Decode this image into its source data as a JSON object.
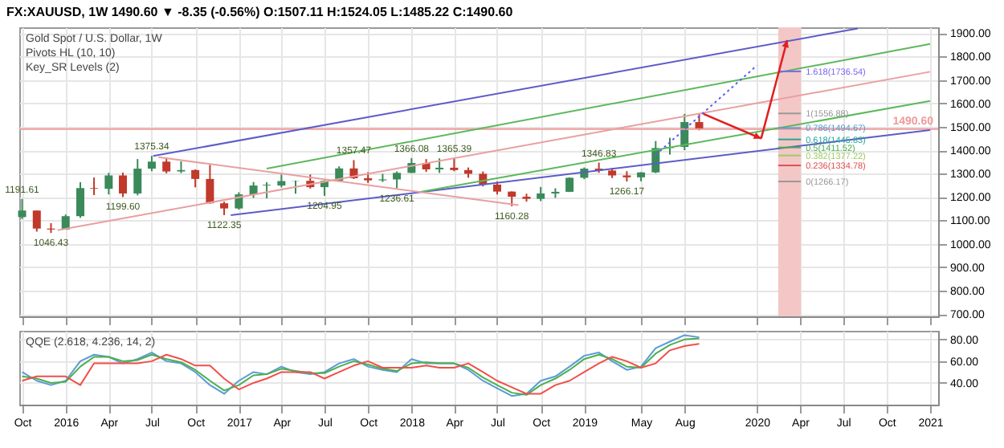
{
  "chart_data": [
    {
      "type": "candlestick",
      "title": "FX:XAUUSD, 1W  1490.60 ▼ -8.35 (-0.56%)  O:1507.11 H:1524.05 L:1485.22 C:1490.60",
      "subtitle": "Gold Spot / U.S. Dollar, 1W",
      "x": [
        "2015-10",
        "2015-11",
        "2015-12",
        "2016-01",
        "2016-02",
        "2016-03",
        "2016-04",
        "2016-05",
        "2016-06",
        "2016-07",
        "2016-08",
        "2016-09",
        "2016-10",
        "2016-11",
        "2016-12",
        "2017-01",
        "2017-02",
        "2017-03",
        "2017-04",
        "2017-05",
        "2017-06",
        "2017-07",
        "2017-08",
        "2017-09",
        "2017-10",
        "2017-11",
        "2017-12",
        "2018-01",
        "2018-02",
        "2018-03",
        "2018-04",
        "2018-05",
        "2018-06",
        "2018-07",
        "2018-08",
        "2018-09",
        "2018-10",
        "2018-11",
        "2018-12",
        "2019-01",
        "2019-02",
        "2019-03",
        "2019-04",
        "2019-05",
        "2019-06",
        "2019-07",
        "2019-08",
        "2019-09"
      ],
      "ohlc": [
        [
          1114,
          1191.61,
          1106,
          1142
        ],
        [
          1142,
          1142,
          1052,
          1065
        ],
        [
          1065,
          1088,
          1046.43,
          1061
        ],
        [
          1061,
          1125,
          1060,
          1118
        ],
        [
          1118,
          1263,
          1111,
          1238
        ],
        [
          1238,
          1283,
          1208,
          1235
        ],
        [
          1235,
          1303,
          1211,
          1292
        ],
        [
          1292,
          1304,
          1199.6,
          1215
        ],
        [
          1215,
          1362,
          1207,
          1321
        ],
        [
          1321,
          1375.34,
          1310,
          1351
        ],
        [
          1351,
          1367,
          1301,
          1309
        ],
        [
          1309,
          1352,
          1302,
          1315
        ],
        [
          1315,
          1318,
          1241,
          1277
        ],
        [
          1277,
          1337,
          1171,
          1173
        ],
        [
          1173,
          1180,
          1122.35,
          1151
        ],
        [
          1151,
          1220,
          1146,
          1211
        ],
        [
          1211,
          1264,
          1196,
          1249
        ],
        [
          1249,
          1263,
          1194,
          1252
        ],
        [
          1249,
          1296,
          1241,
          1268
        ],
        [
          1268,
          1270,
          1214,
          1269
        ],
        [
          1269,
          1296,
          1236,
          1242
        ],
        [
          1242,
          1272,
          1204.95,
          1269
        ],
        [
          1269,
          1331,
          1267,
          1322
        ],
        [
          1322,
          1357.47,
          1277,
          1280
        ],
        [
          1280,
          1306,
          1260,
          1271
        ],
        [
          1271,
          1299,
          1264,
          1275
        ],
        [
          1275,
          1309,
          1236.61,
          1303
        ],
        [
          1303,
          1366.08,
          1302,
          1345
        ],
        [
          1345,
          1362,
          1307,
          1318
        ],
        [
          1318,
          1365,
          1303,
          1325
        ],
        [
          1325,
          1365.39,
          1310,
          1315
        ],
        [
          1315,
          1326,
          1282,
          1299
        ],
        [
          1299,
          1309,
          1245,
          1253
        ],
        [
          1253,
          1266,
          1211,
          1223
        ],
        [
          1223,
          1224,
          1160.28,
          1201
        ],
        [
          1201,
          1214,
          1180,
          1192
        ],
        [
          1192,
          1243,
          1182,
          1215
        ],
        [
          1215,
          1237,
          1196,
          1222
        ],
        [
          1222,
          1284,
          1221,
          1282
        ],
        [
          1282,
          1326,
          1276,
          1321
        ],
        [
          1321,
          1346.83,
          1303,
          1313
        ],
        [
          1313,
          1324,
          1281,
          1292
        ],
        [
          1292,
          1310,
          1266.17,
          1284
        ],
        [
          1284,
          1306,
          1267,
          1305
        ],
        [
          1305,
          1439,
          1302,
          1409
        ],
        [
          1409,
          1453,
          1381,
          1414
        ],
        [
          1414,
          1555,
          1400,
          1520
        ],
        [
          1520,
          1556.88,
          1485,
          1491
        ]
      ],
      "series": [
        {
          "type": "line",
          "color": "#5c5cc8",
          "x": [
            "2016-07-04",
            "2020-08-01"
          ],
          "values": [
            1375,
            1920
          ]
        },
        {
          "type": "line",
          "color": "#5c5cc8",
          "x": [
            "2016-12-15",
            "2021-01-01"
          ],
          "values": [
            1122,
            1486
          ]
        },
        {
          "type": "line",
          "color": "#5cb85c",
          "x": [
            "2017-03-01",
            "2021-01-01"
          ],
          "values": [
            1321,
            1854
          ]
        },
        {
          "type": "line",
          "color": "#5cb85c",
          "x": [
            "2018-01-20",
            "2021-01-01"
          ],
          "values": [
            1222,
            1610
          ]
        },
        {
          "type": "line",
          "color": "#e8a0a0",
          "x": [
            "2015-12-15",
            "2021-01-01"
          ],
          "values": [
            1058,
            1735
          ]
        },
        {
          "type": "line",
          "color": "#e8a0a0",
          "x": [
            "2016-07-15",
            "2018-08-15"
          ],
          "values": [
            1370,
            1165
          ]
        },
        {
          "type": "line",
          "color": "#5c5cf0",
          "line_style": "dotted",
          "x": [
            "2019-06-01",
            "2020-01-01"
          ],
          "values": [
            1380,
            1762
          ]
        },
        {
          "type": "line",
          "name": "1.618(1736.54)",
          "color": "#7b68ee",
          "x": [
            "2020-02-15",
            "2020-04-03"
          ],
          "values": [
            1736.54,
            1736.54
          ]
        },
        {
          "type": "line",
          "name": "1(1556.88)",
          "color": "#999999",
          "x": [
            "2020-02-15",
            "2020-04-03"
          ],
          "values": [
            1556.88,
            1556.88
          ]
        },
        {
          "type": "line",
          "name": "0.786(1494.67)",
          "color": "#5b9bd5",
          "x": [
            "2020-02-15",
            "2020-04-03"
          ],
          "values": [
            1494.67,
            1494.67
          ]
        },
        {
          "type": "line",
          "name": "0.618(1445.83)",
          "color": "#26a69a",
          "x": [
            "2020-02-15",
            "2020-04-03"
          ],
          "values": [
            1445.83,
            1445.83
          ]
        },
        {
          "type": "line",
          "name": "0.5(1411.52)",
          "color": "#4caf50",
          "x": [
            "2020-02-15",
            "2020-04-03"
          ],
          "values": [
            1411.52,
            1411.52
          ]
        },
        {
          "type": "line",
          "name": "0.382(1377.22)",
          "color": "#9ccc65",
          "x": [
            "2020-02-15",
            "2020-04-03"
          ],
          "values": [
            1377.22,
            1377.22
          ]
        },
        {
          "type": "line",
          "name": "0.236(1334.78)",
          "color": "#e05050",
          "x": [
            "2020-02-15",
            "2020-04-03"
          ],
          "values": [
            1334.78,
            1334.78
          ]
        },
        {
          "type": "line",
          "name": "0(1266.17)",
          "color": "#999999",
          "x": [
            "2020-02-15",
            "2020-04-03"
          ],
          "values": [
            1266.17,
            1266.17
          ]
        }
      ],
      "annotations": [
        "Pivots HL (10, 10)",
        "Key_SR Levels (2)",
        {
          "text": "1191.61",
          "x": "2015-10",
          "y": 1191.61
        },
        {
          "text": "1046.43",
          "x": "2015-12",
          "y": 1046.43
        },
        {
          "text": "1199.60",
          "x": "2016-05",
          "y": 1199.6
        },
        {
          "text": "1375.34",
          "x": "2016-07",
          "y": 1375.34
        },
        {
          "text": "1122.35",
          "x": "2016-12",
          "y": 1122.35
        },
        {
          "text": "1204.95",
          "x": "2017-07",
          "y": 1204.95
        },
        {
          "text": "1357.47",
          "x": "2017-09",
          "y": 1357.47
        },
        {
          "text": "1236.61",
          "x": "2017-12",
          "y": 1236.61
        },
        {
          "text": "1366.08",
          "x": "2018-01",
          "y": 1366.08
        },
        {
          "text": "1365.39",
          "x": "2018-04",
          "y": 1365.39
        },
        {
          "text": "1160.28",
          "x": "2018-08",
          "y": 1160.28
        },
        {
          "text": "1346.83",
          "x": "2019-02",
          "y": 1346.83
        },
        {
          "text": "1266.17",
          "x": "2019-04",
          "y": 1266.17
        }
      ],
      "ref_lines": [
        {
          "axis": "y",
          "value": 1490.6,
          "label": "1490.60",
          "color": "#ef9a9a"
        }
      ],
      "bands": [
        {
          "axis": "x",
          "from": "2020-02-15",
          "to": "2020-04-03",
          "color": "#f4c7c7"
        }
      ],
      "xlim": [
        "2015-09-25",
        "2021-01-18"
      ],
      "xticks": [
        {
          "value": "2015-10-01",
          "label": null
        },
        {
          "value": "2016-01-01",
          "label": null
        },
        {
          "value": "2016-04-01",
          "label": null
        },
        {
          "value": "2016-07-01",
          "label": null
        },
        {
          "value": "2016-10-01",
          "label": null
        },
        {
          "value": "2017-01-01",
          "label": null
        },
        {
          "value": "2017-04-01",
          "label": null
        },
        {
          "value": "2017-07-01",
          "label": null
        },
        {
          "value": "2017-10-01",
          "label": null
        },
        {
          "value": "2018-01-01",
          "label": null
        },
        {
          "value": "2018-04-01",
          "label": null
        },
        {
          "value": "2018-07-01",
          "label": null
        },
        {
          "value": "2018-10-01",
          "label": null
        },
        {
          "value": "2019-01-01",
          "label": null
        },
        {
          "value": "2019-05-01",
          "label": null
        },
        {
          "value": "2019-08-01",
          "label": null
        },
        {
          "value": "2020-01-01",
          "label": null
        },
        {
          "value": "2020-04-01",
          "label": null
        },
        {
          "value": "2020-07-01",
          "label": null
        },
        {
          "value": "2020-10-01",
          "label": null
        },
        {
          "value": "2021-01-01",
          "label": null
        }
      ],
      "ylim": [
        690,
        1925
      ],
      "yticks": [
        {
          "value": 700,
          "label": "700.00"
        },
        {
          "value": 800,
          "label": "800.00"
        },
        {
          "value": 900,
          "label": "900.00"
        },
        {
          "value": 1000,
          "label": "1000.00"
        },
        {
          "value": 1100,
          "label": "1100.00"
        },
        {
          "value": 1200,
          "label": "1200.00"
        },
        {
          "value": 1300,
          "label": "1300.00"
        },
        {
          "value": 1400,
          "label": "1400.00"
        },
        {
          "value": 1500,
          "label": "1500.00"
        },
        {
          "value": 1600,
          "label": "1600.00"
        },
        {
          "value": 1700,
          "label": "1700.00"
        },
        {
          "value": 1800,
          "label": "1800.00"
        },
        {
          "value": 1900,
          "label": "1900.00"
        }
      ],
      "grid": true,
      "tick_labels": "y"
    },
    {
      "type": "line",
      "annotations": [
        "QQE (2.618, 4.236, 14, 2)"
      ],
      "x": [
        "2015-10",
        "2015-11",
        "2015-12",
        "2016-01",
        "2016-02",
        "2016-03",
        "2016-04",
        "2016-05",
        "2016-06",
        "2016-07",
        "2016-08",
        "2016-09",
        "2016-10",
        "2016-11",
        "2016-12",
        "2017-01",
        "2017-02",
        "2017-03",
        "2017-04",
        "2017-05",
        "2017-06",
        "2017-07",
        "2017-08",
        "2017-09",
        "2017-10",
        "2017-11",
        "2017-12",
        "2018-01",
        "2018-02",
        "2018-03",
        "2018-04",
        "2018-05",
        "2018-06",
        "2018-07",
        "2018-08",
        "2018-09",
        "2018-10",
        "2018-11",
        "2018-12",
        "2019-01",
        "2019-02",
        "2019-03",
        "2019-04",
        "2019-05",
        "2019-06",
        "2019-07",
        "2019-08",
        "2019-09"
      ],
      "series": [
        {
          "color": "#5b9bd5",
          "values": [
            50,
            42,
            38,
            42,
            60,
            66,
            64,
            58,
            62,
            68,
            60,
            58,
            50,
            38,
            30,
            42,
            50,
            48,
            55,
            50,
            48,
            50,
            58,
            62,
            55,
            52,
            50,
            62,
            58,
            58,
            58,
            52,
            42,
            35,
            28,
            30,
            42,
            46,
            55,
            65,
            68,
            60,
            52,
            55,
            72,
            78,
            84,
            82
          ]
        },
        {
          "color": "#4caf50",
          "values": [
            46,
            44,
            40,
            41,
            55,
            64,
            64,
            60,
            61,
            66,
            62,
            59,
            52,
            42,
            33,
            38,
            47,
            48,
            53,
            51,
            49,
            49,
            55,
            60,
            57,
            53,
            51,
            58,
            59,
            58,
            58,
            54,
            45,
            38,
            31,
            29,
            38,
            44,
            52,
            62,
            66,
            62,
            55,
            54,
            67,
            75,
            80,
            81
          ]
        },
        {
          "color": "#f0504a",
          "values": [
            42,
            46,
            46,
            46,
            38,
            58,
            58,
            58,
            58,
            60,
            66,
            62,
            56,
            56,
            44,
            34,
            40,
            44,
            50,
            50,
            50,
            44,
            50,
            56,
            60,
            54,
            54,
            54,
            56,
            54,
            54,
            58,
            50,
            42,
            36,
            30,
            30,
            38,
            42,
            50,
            58,
            64,
            60,
            54,
            58,
            70,
            74,
            76
          ]
        }
      ],
      "xlim": [
        "2015-09-25",
        "2021-01-18"
      ],
      "xticks": [
        {
          "value": "2015-10-01",
          "label": "Oct"
        },
        {
          "value": "2016-01-01",
          "label": "2016"
        },
        {
          "value": "2016-04-01",
          "label": "Apr"
        },
        {
          "value": "2016-07-01",
          "label": "Jul"
        },
        {
          "value": "2016-10-01",
          "label": "Oct"
        },
        {
          "value": "2017-01-01",
          "label": "2017"
        },
        {
          "value": "2017-04-01",
          "label": "Apr"
        },
        {
          "value": "2017-07-01",
          "label": "Jul"
        },
        {
          "value": "2017-10-01",
          "label": "Oct"
        },
        {
          "value": "2018-01-01",
          "label": "2018"
        },
        {
          "value": "2018-04-01",
          "label": "Apr"
        },
        {
          "value": "2018-07-01",
          "label": "Jul"
        },
        {
          "value": "2018-10-01",
          "label": "Oct"
        },
        {
          "value": "2019-01-01",
          "label": "2019"
        },
        {
          "value": "2019-05-01",
          "label": "May"
        },
        {
          "value": "2019-08-01",
          "label": "Aug"
        },
        {
          "value": "2020-01-01",
          "label": "2020"
        },
        {
          "value": "2020-04-01",
          "label": "Apr"
        },
        {
          "value": "2020-07-01",
          "label": "Jul"
        },
        {
          "value": "2020-10-01",
          "label": "Oct"
        },
        {
          "value": "2021-01-01",
          "label": "2021"
        }
      ],
      "ylim": [
        20,
        88
      ],
      "yticks": [
        {
          "value": 40,
          "label": "40.00"
        },
        {
          "value": 60,
          "label": "60.00"
        },
        {
          "value": 80,
          "label": "80.00"
        }
      ],
      "grid": true
    }
  ]
}
